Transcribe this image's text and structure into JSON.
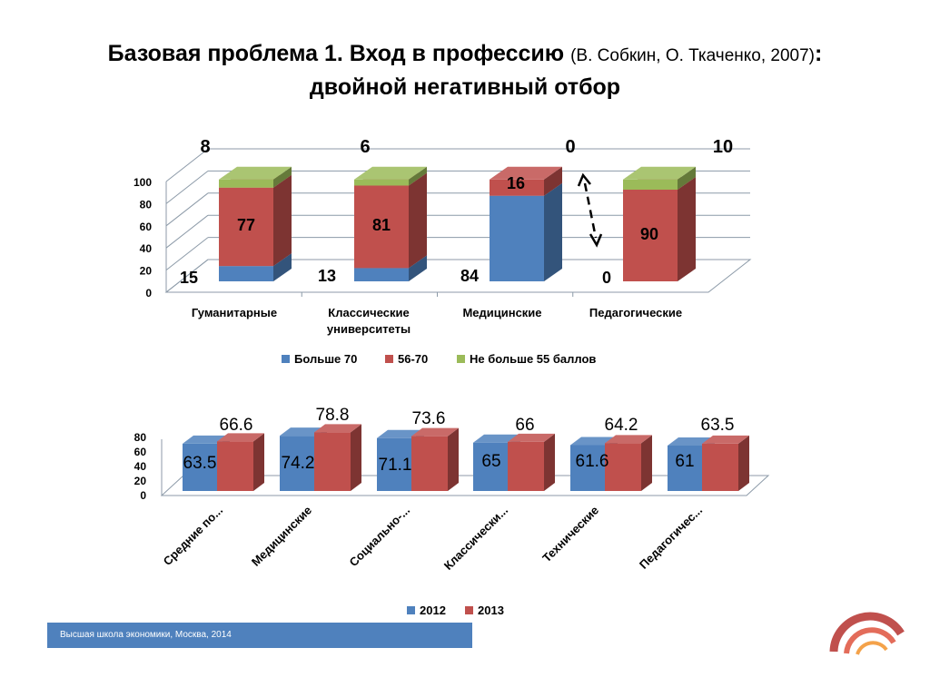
{
  "title": {
    "main": "Базовая проблема 1. Вход в профессию",
    "source": "(В. Собкин, О. Ткаченко, 2007)",
    "colon": ":",
    "line2": "двойной негативный отбор"
  },
  "footer": {
    "text": "Высшая школа экономики, Москва, 2014"
  },
  "colors": {
    "blue": "#4f81bd",
    "red": "#c0504d",
    "green": "#9bbb59",
    "footer_bar": "#4f81bd"
  },
  "chart_data": [
    {
      "type": "bar",
      "stacked": true,
      "three_d": true,
      "categories": [
        "Гуманитарные",
        "Классические университеты",
        "Медицинские",
        "Педагогические"
      ],
      "category_lines": [
        [
          "Гуманитарные"
        ],
        [
          "Классические",
          "университеты"
        ],
        [
          "Медицинские"
        ],
        [
          "Педагогические"
        ]
      ],
      "series": [
        {
          "name": "Больше 70",
          "color": "#4f81bd",
          "values": [
            15,
            13,
            84,
            0
          ]
        },
        {
          "name": "56-70",
          "color": "#c0504d",
          "values": [
            77,
            81,
            16,
            90
          ]
        },
        {
          "name": "Не больше 55 баллов",
          "color": "#9bbb59",
          "values": [
            8,
            6,
            0,
            10
          ]
        }
      ],
      "yticks": [
        "0",
        "20",
        "40",
        "60",
        "80",
        "100"
      ],
      "ylim": [
        0,
        100
      ],
      "grid": true,
      "legend": "bottom",
      "data_labels": {
        "blue": [
          "15",
          "13",
          "84",
          "0"
        ],
        "red": [
          "77",
          "81",
          "16",
          "90"
        ],
        "green": [
          "8",
          "6",
          "0",
          "10"
        ]
      },
      "annotation": "dashed double-headed arrow above Педагогические"
    },
    {
      "type": "bar",
      "three_d": true,
      "categories": [
        "Средние по...",
        "Медицинские",
        "Социально-...",
        "Классически...",
        "Технические",
        "Педагогичес..."
      ],
      "series": [
        {
          "name": "2012",
          "color": "#4f81bd",
          "values": [
            63.5,
            74.2,
            71.1,
            65,
            61.6,
            61
          ]
        },
        {
          "name": "2013",
          "color": "#c0504d",
          "values": [
            66.6,
            78.8,
            73.6,
            66,
            64.2,
            63.5
          ]
        }
      ],
      "labels_2012": [
        "63.5",
        "74.2",
        "71.1",
        "65",
        "61.6",
        "61"
      ],
      "labels_2013": [
        "66.6",
        "78.8",
        "73.6",
        "66",
        "64.2",
        "63.5"
      ],
      "yticks": [
        "0",
        "20",
        "40",
        "60",
        "80"
      ],
      "ylim": [
        0,
        80
      ],
      "legend": "bottom"
    }
  ]
}
